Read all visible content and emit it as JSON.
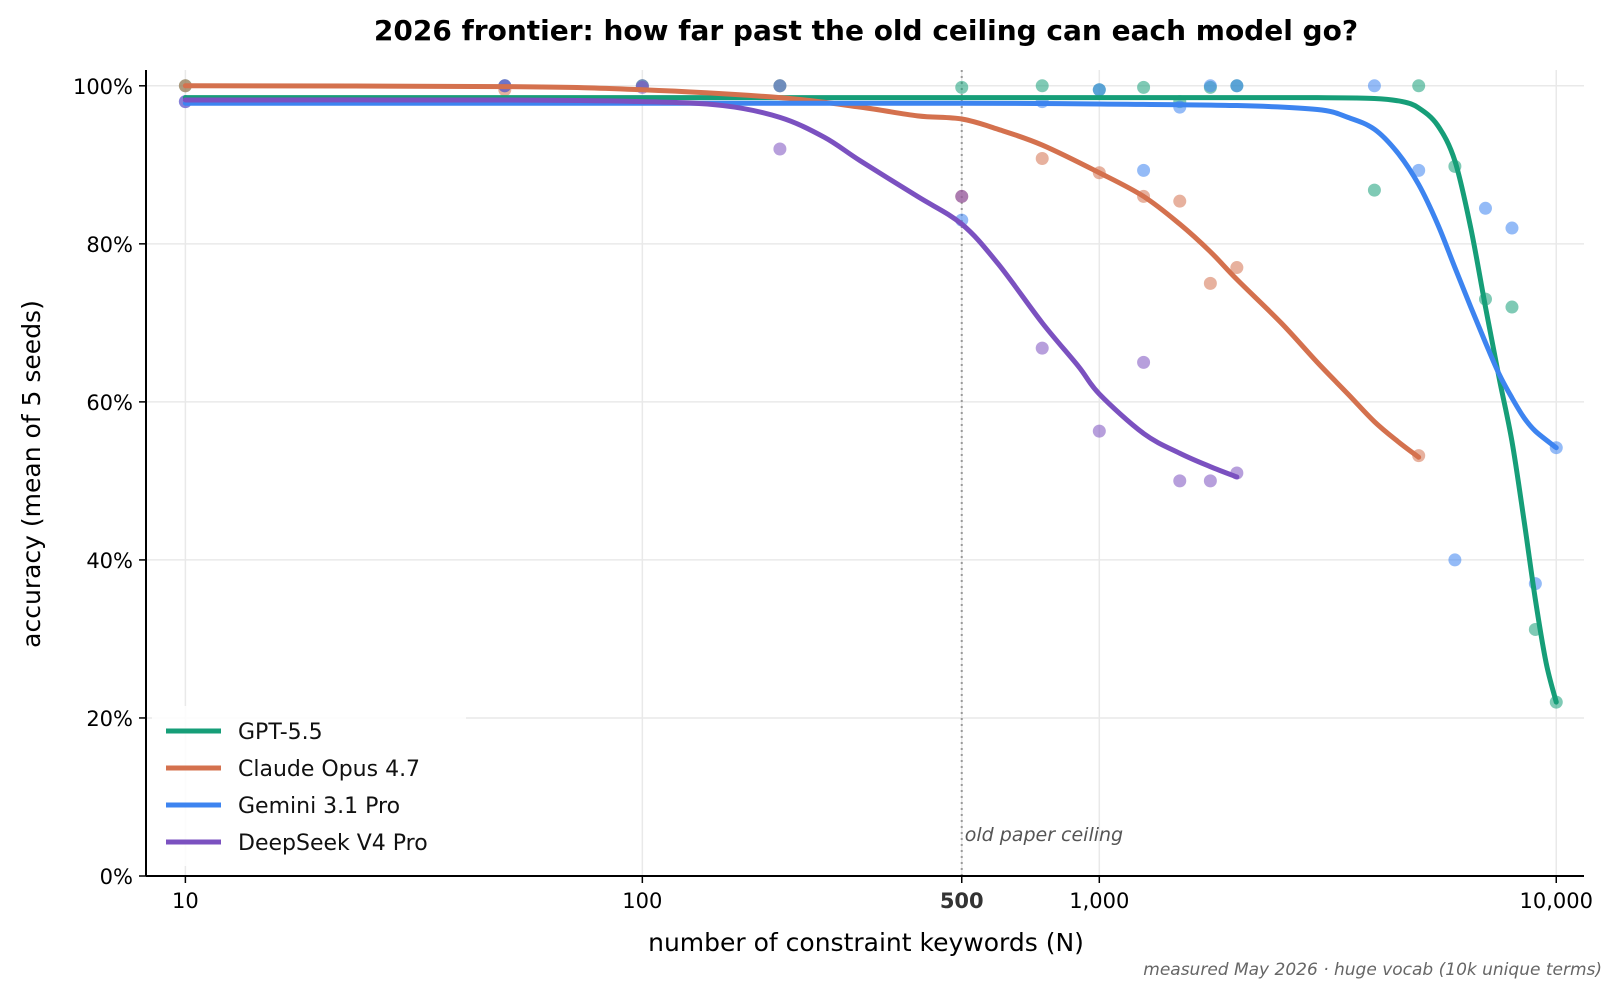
{
  "chart_data": {
    "type": "line",
    "title": "2026 frontier: how far past the old ceiling can each model go?",
    "xlabel": "number of constraint keywords (N)",
    "ylabel": "accuracy (mean of 5 seeds)",
    "x_scale": "log",
    "xlim": [
      8.2,
      11500
    ],
    "ylim": [
      0,
      102
    ],
    "x_ticks": [
      {
        "value": 10,
        "label": "10",
        "bold": false
      },
      {
        "value": 100,
        "label": "100",
        "bold": false
      },
      {
        "value": 500,
        "label": "500",
        "bold": true
      },
      {
        "value": 1000,
        "label": "1,000",
        "bold": false
      },
      {
        "value": 10000,
        "label": "10,000",
        "bold": false
      }
    ],
    "y_ticks": [
      {
        "value": 0,
        "label": "0%"
      },
      {
        "value": 20,
        "label": "20%"
      },
      {
        "value": 40,
        "label": "40%"
      },
      {
        "value": 60,
        "label": "60%"
      },
      {
        "value": 80,
        "label": "80%"
      },
      {
        "value": 100,
        "label": "100%"
      }
    ],
    "grid": true,
    "legend_position": "bottom-left",
    "series": [
      {
        "name": "GPT-5.5",
        "color": "#169e78",
        "points": [
          [
            10,
            100
          ],
          [
            50,
            100
          ],
          [
            100,
            100
          ],
          [
            200,
            100
          ],
          [
            500,
            99.8
          ],
          [
            750,
            100
          ],
          [
            1000,
            99.5
          ],
          [
            1250,
            99.8
          ],
          [
            1500,
            98
          ],
          [
            1750,
            99.8
          ],
          [
            2000,
            100
          ],
          [
            4000,
            86.8
          ],
          [
            5000,
            100
          ],
          [
            6000,
            89.8
          ],
          [
            7000,
            73
          ],
          [
            8000,
            72
          ],
          [
            9000,
            31.2
          ],
          [
            10000,
            22
          ]
        ],
        "fit": [
          [
            10,
            98.5
          ],
          [
            100,
            98.5
          ],
          [
            500,
            98.5
          ],
          [
            1000,
            98.5
          ],
          [
            2000,
            98.5
          ],
          [
            3000,
            98.5
          ],
          [
            4000,
            98.4
          ],
          [
            4600,
            98
          ],
          [
            5000,
            97.2
          ],
          [
            5500,
            95
          ],
          [
            6000,
            90.5
          ],
          [
            6500,
            82
          ],
          [
            7000,
            72
          ],
          [
            7500,
            63
          ],
          [
            8000,
            55
          ],
          [
            8500,
            45
          ],
          [
            9000,
            35
          ],
          [
            9500,
            27
          ],
          [
            10000,
            22
          ]
        ]
      },
      {
        "name": "Claude Opus 4.7",
        "color": "#d4714e",
        "points": [
          [
            10,
            100
          ],
          [
            50,
            99.5
          ],
          [
            100,
            100
          ],
          [
            200,
            100
          ],
          [
            500,
            86
          ],
          [
            750,
            90.8
          ],
          [
            1000,
            89
          ],
          [
            1250,
            86
          ],
          [
            1500,
            85.4
          ],
          [
            1750,
            75
          ],
          [
            2000,
            77
          ],
          [
            5000,
            53.2
          ]
        ],
        "fit": [
          [
            10,
            100
          ],
          [
            50,
            99.9
          ],
          [
            100,
            99.5
          ],
          [
            200,
            98.5
          ],
          [
            300,
            97.3
          ],
          [
            400,
            96.2
          ],
          [
            500,
            95.8
          ],
          [
            600,
            94.5
          ],
          [
            750,
            92.5
          ],
          [
            1000,
            89
          ],
          [
            1250,
            86
          ],
          [
            1500,
            82.5
          ],
          [
            1750,
            79
          ],
          [
            2000,
            75.5
          ],
          [
            2500,
            70
          ],
          [
            3000,
            65
          ],
          [
            3500,
            61
          ],
          [
            4000,
            57.5
          ],
          [
            4500,
            55
          ],
          [
            5000,
            53
          ]
        ]
      },
      {
        "name": "Gemini 3.1 Pro",
        "color": "#3d84f0",
        "points": [
          [
            10,
            98
          ],
          [
            50,
            100
          ],
          [
            100,
            100
          ],
          [
            200,
            100
          ],
          [
            500,
            83
          ],
          [
            750,
            98
          ],
          [
            1000,
            99.5
          ],
          [
            1250,
            89.3
          ],
          [
            1500,
            97.3
          ],
          [
            1750,
            100
          ],
          [
            2000,
            100
          ],
          [
            4000,
            100
          ],
          [
            5000,
            89.3
          ],
          [
            6000,
            40
          ],
          [
            7000,
            84.5
          ],
          [
            8000,
            82
          ],
          [
            9000,
            37
          ],
          [
            10000,
            54.2
          ]
        ],
        "fit": [
          [
            10,
            97.8
          ],
          [
            100,
            97.8
          ],
          [
            500,
            97.8
          ],
          [
            1000,
            97.7
          ],
          [
            2000,
            97.5
          ],
          [
            3000,
            97
          ],
          [
            3500,
            96
          ],
          [
            4000,
            94.5
          ],
          [
            4500,
            91.5
          ],
          [
            5000,
            87.5
          ],
          [
            5500,
            82.5
          ],
          [
            6000,
            77
          ],
          [
            6500,
            72
          ],
          [
            7000,
            67.5
          ],
          [
            7500,
            63.5
          ],
          [
            8000,
            60.5
          ],
          [
            8500,
            58
          ],
          [
            9000,
            56.3
          ],
          [
            10000,
            54.2
          ]
        ]
      },
      {
        "name": "DeepSeek V4 Pro",
        "color": "#7b51c0",
        "points": [
          [
            10,
            98
          ],
          [
            50,
            100
          ],
          [
            100,
            99.8
          ],
          [
            200,
            92
          ],
          [
            500,
            86
          ],
          [
            750,
            66.8
          ],
          [
            1000,
            56.3
          ],
          [
            1250,
            65
          ],
          [
            1500,
            50
          ],
          [
            1750,
            50
          ],
          [
            2000,
            51
          ]
        ],
        "fit": [
          [
            10,
            98.2
          ],
          [
            50,
            98.2
          ],
          [
            100,
            98
          ],
          [
            150,
            97.5
          ],
          [
            200,
            96
          ],
          [
            250,
            93.5
          ],
          [
            300,
            90.5
          ],
          [
            400,
            86
          ],
          [
            500,
            82.5
          ],
          [
            600,
            77.5
          ],
          [
            750,
            70
          ],
          [
            900,
            64.5
          ],
          [
            1000,
            61
          ],
          [
            1250,
            56
          ],
          [
            1500,
            53.5
          ],
          [
            1750,
            51.8
          ],
          [
            2000,
            50.5
          ]
        ]
      }
    ],
    "annotations": [
      {
        "text": "old paper ceiling",
        "x": 500,
        "style": "dotted-vertical-line"
      }
    ],
    "footnote": "measured May 2026 · huge vocab (10k unique terms)"
  }
}
